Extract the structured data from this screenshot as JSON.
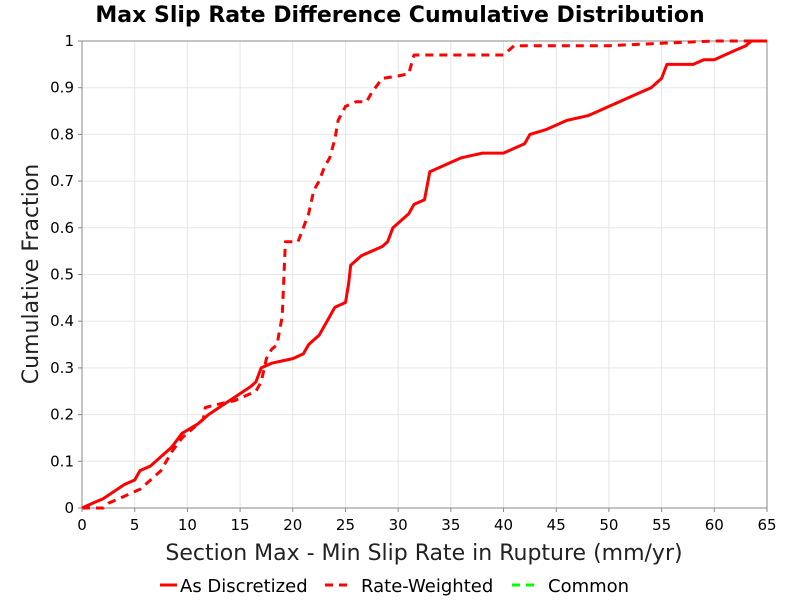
{
  "chart_data": {
    "type": "line",
    "title": "Max Slip Rate Difference Cumulative Distribution",
    "xlabel": "Section Max - Min Slip Rate in Rupture (mm/yr)",
    "ylabel": "Cumulative Fraction",
    "xlim": [
      0,
      65
    ],
    "ylim": [
      0,
      1
    ],
    "grid": true,
    "legend_position": "bottom",
    "x_ticks": [
      0,
      5,
      10,
      15,
      20,
      25,
      30,
      35,
      40,
      45,
      50,
      55,
      60,
      65
    ],
    "x_tick_labels": [
      "0",
      "5",
      "10",
      "15",
      "20",
      "25",
      "30",
      "35",
      "40",
      "45",
      "50",
      "55",
      "60",
      "65"
    ],
    "y_ticks": [
      0,
      0.1,
      0.2,
      0.3,
      0.4,
      0.5,
      0.6,
      0.7,
      0.8,
      0.9,
      1
    ],
    "y_tick_labels": [
      "0",
      "0.1",
      "0.2",
      "0.3",
      "0.4",
      "0.5",
      "0.6",
      "0.7",
      "0.8",
      "0.9",
      "1"
    ],
    "series": [
      {
        "name": "As Discretized",
        "color": "#ff0000",
        "style": "solid",
        "points": [
          [
            0,
            0
          ],
          [
            1,
            0.01
          ],
          [
            2,
            0.02
          ],
          [
            3,
            0.035
          ],
          [
            4,
            0.05
          ],
          [
            5,
            0.06
          ],
          [
            5.5,
            0.08
          ],
          [
            6.5,
            0.09
          ],
          [
            7.5,
            0.11
          ],
          [
            8.5,
            0.13
          ],
          [
            9.5,
            0.16
          ],
          [
            11,
            0.18
          ],
          [
            12,
            0.2
          ],
          [
            13,
            0.215
          ],
          [
            14,
            0.23
          ],
          [
            15,
            0.245
          ],
          [
            16,
            0.26
          ],
          [
            16.5,
            0.27
          ],
          [
            17,
            0.3
          ],
          [
            18,
            0.31
          ],
          [
            19,
            0.315
          ],
          [
            20,
            0.32
          ],
          [
            21,
            0.33
          ],
          [
            21.5,
            0.35
          ],
          [
            22,
            0.36
          ],
          [
            22.5,
            0.37
          ],
          [
            23,
            0.39
          ],
          [
            23.5,
            0.41
          ],
          [
            24,
            0.43
          ],
          [
            25,
            0.44
          ],
          [
            25.3,
            0.48
          ],
          [
            25.5,
            0.52
          ],
          [
            26,
            0.53
          ],
          [
            26.5,
            0.54
          ],
          [
            27.5,
            0.55
          ],
          [
            28.5,
            0.56
          ],
          [
            29,
            0.57
          ],
          [
            29.5,
            0.6
          ],
          [
            30,
            0.61
          ],
          [
            31,
            0.63
          ],
          [
            31.5,
            0.65
          ],
          [
            32.5,
            0.66
          ],
          [
            33,
            0.72
          ],
          [
            34,
            0.73
          ],
          [
            35,
            0.74
          ],
          [
            36,
            0.75
          ],
          [
            37,
            0.755
          ],
          [
            38,
            0.76
          ],
          [
            40,
            0.76
          ],
          [
            41,
            0.77
          ],
          [
            42,
            0.78
          ],
          [
            42.5,
            0.8
          ],
          [
            44,
            0.81
          ],
          [
            45,
            0.82
          ],
          [
            46,
            0.83
          ],
          [
            48,
            0.84
          ],
          [
            49,
            0.85
          ],
          [
            50,
            0.86
          ],
          [
            51,
            0.87
          ],
          [
            52,
            0.88
          ],
          [
            53,
            0.89
          ],
          [
            54,
            0.9
          ],
          [
            55,
            0.92
          ],
          [
            55.5,
            0.95
          ],
          [
            58,
            0.95
          ],
          [
            59,
            0.96
          ],
          [
            60,
            0.96
          ],
          [
            61,
            0.97
          ],
          [
            62,
            0.98
          ],
          [
            63,
            0.99
          ],
          [
            63.5,
            1.0
          ],
          [
            65,
            1.0
          ]
        ]
      },
      {
        "name": "Rate-Weighted",
        "color": "#ff0000",
        "style": "dashed",
        "points": [
          [
            0,
            0
          ],
          [
            2,
            0
          ],
          [
            2.5,
            0.01
          ],
          [
            3.5,
            0.02
          ],
          [
            4.5,
            0.03
          ],
          [
            5.5,
            0.04
          ],
          [
            6.5,
            0.06
          ],
          [
            7.5,
            0.08
          ],
          [
            8.5,
            0.12
          ],
          [
            9.5,
            0.15
          ],
          [
            10.5,
            0.17
          ],
          [
            11.5,
            0.19
          ],
          [
            11.7,
            0.215
          ],
          [
            12.5,
            0.22
          ],
          [
            13.5,
            0.225
          ],
          [
            14.5,
            0.23
          ],
          [
            15.5,
            0.24
          ],
          [
            16.5,
            0.25
          ],
          [
            17,
            0.27
          ],
          [
            17.5,
            0.32
          ],
          [
            18,
            0.34
          ],
          [
            18.5,
            0.35
          ],
          [
            19,
            0.41
          ],
          [
            19.3,
            0.57
          ],
          [
            20,
            0.57
          ],
          [
            20.5,
            0.57
          ],
          [
            21.5,
            0.63
          ],
          [
            22,
            0.68
          ],
          [
            22.5,
            0.7
          ],
          [
            23,
            0.73
          ],
          [
            23.5,
            0.75
          ],
          [
            24,
            0.79
          ],
          [
            24.3,
            0.83
          ],
          [
            25,
            0.86
          ],
          [
            26,
            0.87
          ],
          [
            27,
            0.87
          ],
          [
            27.5,
            0.89
          ],
          [
            28.5,
            0.92
          ],
          [
            30,
            0.925
          ],
          [
            31,
            0.93
          ],
          [
            31.5,
            0.97
          ],
          [
            33,
            0.97
          ],
          [
            35,
            0.97
          ],
          [
            37,
            0.97
          ],
          [
            40,
            0.97
          ],
          [
            41,
            0.99
          ],
          [
            45,
            0.99
          ],
          [
            50,
            0.99
          ],
          [
            55,
            0.995
          ],
          [
            60,
            1.0
          ],
          [
            65,
            1.0
          ]
        ]
      },
      {
        "name": "Common",
        "color": "#00ff00",
        "style": "dashed",
        "points": []
      }
    ]
  }
}
